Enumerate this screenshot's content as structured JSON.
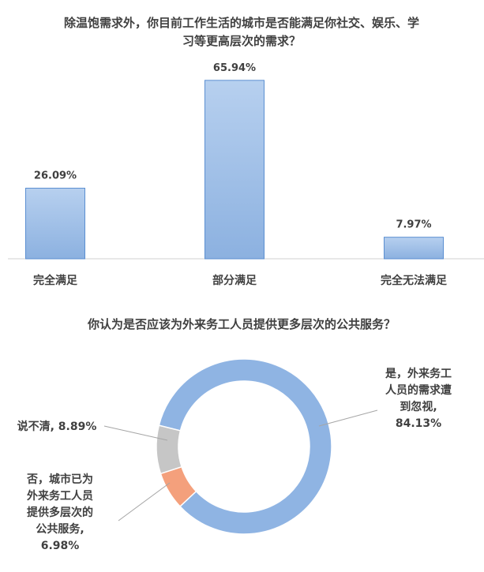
{
  "chart_data": [
    {
      "type": "bar",
      "title_lines": [
        "除温饱需求外，你目前工作生活的城市是否能满足你社交、娱乐、学",
        "习等更高层次的需求？"
      ],
      "categories": [
        "完全满足",
        "部分满足",
        "完全无法满足"
      ],
      "values": [
        26.09,
        65.94,
        7.97
      ],
      "data_labels": [
        "26.09%",
        "65.94%",
        "7.97%"
      ],
      "unit": "%",
      "grid": false,
      "colors": {
        "bar": "#9dbde6",
        "bar_edge": "#5b8fd1"
      }
    },
    {
      "type": "pie",
      "variant": "doughnut",
      "title": "你认为是否应该为外来务工人员提供更多层次的公共服务？",
      "slices": [
        {
          "label_lines": [
            "是，外来务工",
            "人员的需求遭",
            "到忽视,",
            "84.13%"
          ],
          "value": 84.13,
          "color": "#8fb4e3"
        },
        {
          "label_lines": [
            "否，城市已为",
            "外来务工人员",
            "提供多层次的",
            "公共服务,",
            "6.98%"
          ],
          "value": 6.98,
          "color": "#f4a07c"
        },
        {
          "label_lines": [
            "说不清, 8.89%"
          ],
          "value": 8.89,
          "color": "#c6c6c6"
        }
      ]
    }
  ]
}
